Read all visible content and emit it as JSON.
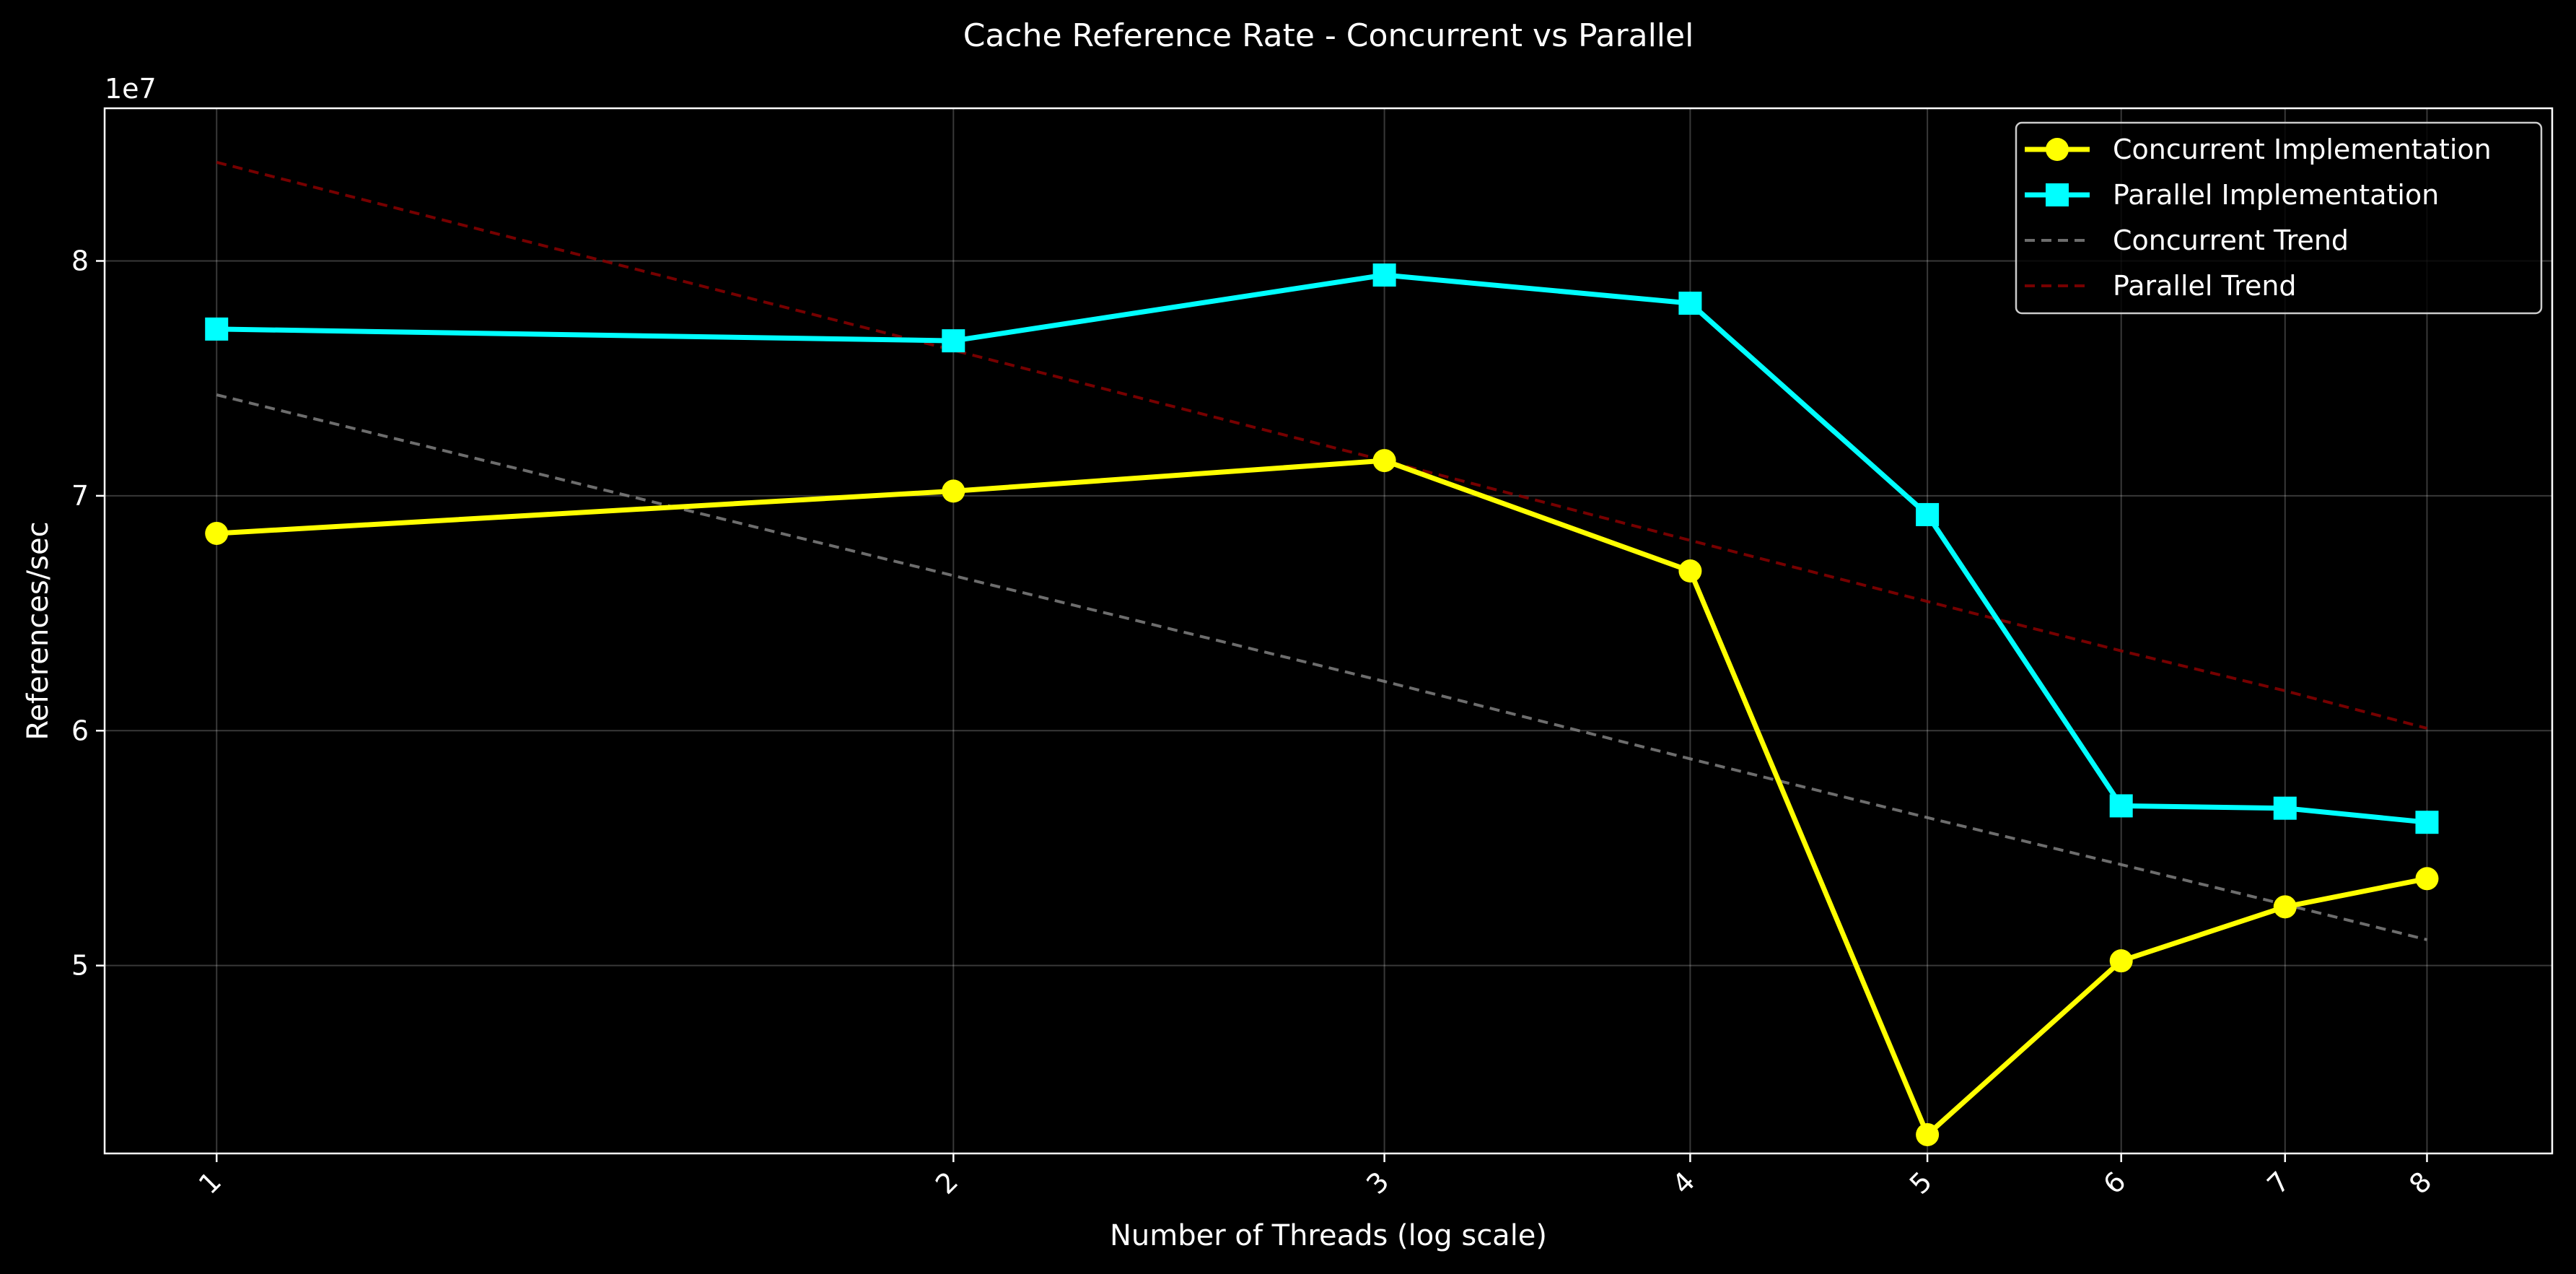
{
  "chart_data": {
    "type": "line",
    "title": "Cache Reference Rate - Concurrent vs Parallel",
    "xlabel": "Number of Threads (log scale)",
    "ylabel": "References/sec",
    "y_offset_label": "1e7",
    "x_scale": "log",
    "x": [
      1,
      2,
      3,
      4,
      5,
      6,
      7,
      8
    ],
    "x_tick_labels": [
      "1",
      "2",
      "3",
      "4",
      "5",
      "6",
      "7",
      "8"
    ],
    "y_ticks": [
      50000000,
      60000000,
      70000000,
      80000000
    ],
    "y_tick_labels": [
      "5",
      "6",
      "7",
      "8"
    ],
    "xlim": [
      0.9,
      9.0
    ],
    "ylim": [
      42000000,
      86500000
    ],
    "grid": true,
    "legend_position": "top-right",
    "series": [
      {
        "name": "Concurrent Implementation",
        "style": "solid",
        "marker": "circle",
        "color": "#ffff00",
        "values": [
          68400000,
          70200000,
          71500000,
          66800000,
          42800000,
          50200000,
          52500000,
          53700000
        ]
      },
      {
        "name": "Parallel Implementation",
        "style": "solid",
        "marker": "square",
        "color": "#00ffff",
        "values": [
          77100000,
          76600000,
          79400000,
          78200000,
          69200000,
          56800000,
          56700000,
          56100000
        ]
      },
      {
        "name": "Concurrent Trend",
        "style": "dashed",
        "marker": "none",
        "color": "#808080",
        "values": [
          74300000,
          66600000,
          62100000,
          58800000,
          56300000,
          54300000,
          52600000,
          51100000
        ]
      },
      {
        "name": "Parallel Trend",
        "style": "dashed",
        "marker": "none",
        "color": "#8b0000",
        "values": [
          84200000,
          76200000,
          71500000,
          68100000,
          65500000,
          63400000,
          61700000,
          60100000
        ]
      }
    ]
  }
}
